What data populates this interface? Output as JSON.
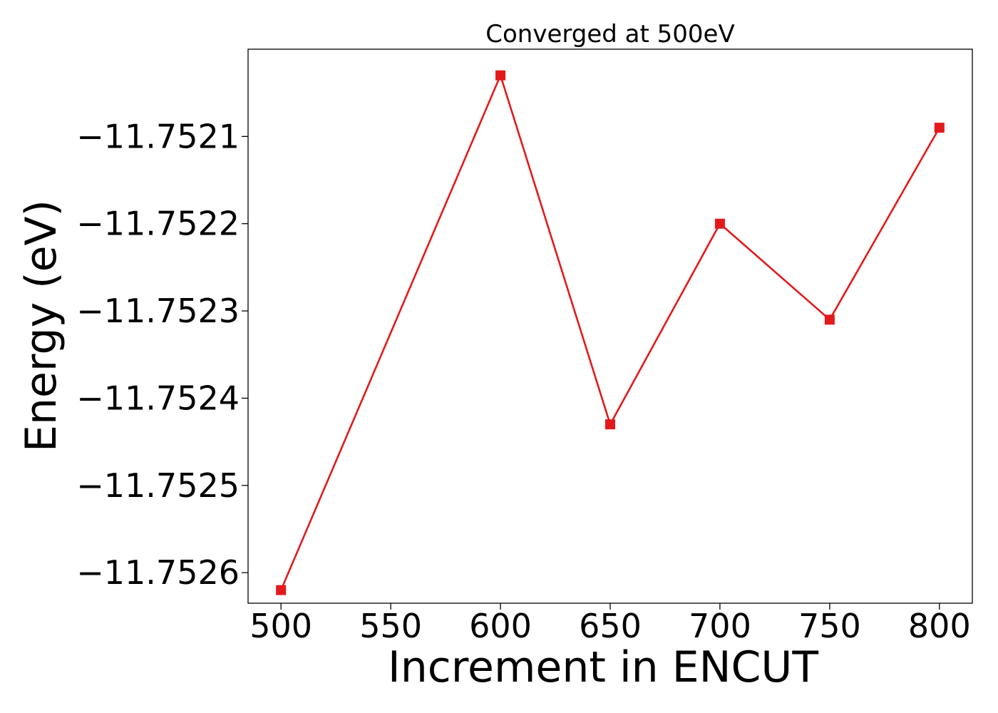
{
  "chart_data": {
    "type": "line",
    "title": "Converged at 500eV",
    "xlabel": "Increment in ENCUT",
    "ylabel": "Energy (eV)",
    "x": [
      500,
      600,
      650,
      700,
      750,
      800
    ],
    "series": [
      {
        "values": [
          -11.75262,
          -11.75203,
          -11.75243,
          -11.7522,
          -11.75231,
          -11.75209
        ],
        "color": "#e31a1c",
        "marker": "square"
      }
    ],
    "xlim": [
      485,
      815
    ],
    "ylim": [
      -11.752635,
      -11.752
    ],
    "xticks": [
      500,
      550,
      600,
      650,
      700,
      750,
      800
    ],
    "xtick_labels": [
      "500",
      "550",
      "600",
      "650",
      "700",
      "750",
      "800"
    ],
    "yticks": [
      -11.7526,
      -11.7525,
      -11.7524,
      -11.7523,
      -11.7522,
      -11.7521
    ],
    "ytick_labels": [
      "−11.7526",
      "−11.7525",
      "−11.7524",
      "−11.7523",
      "−11.7522",
      "−11.7521"
    ],
    "grid": false,
    "legend": "none"
  }
}
